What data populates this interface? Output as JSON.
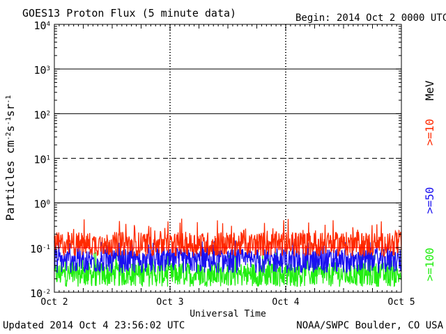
{
  "header": {
    "title": "GOES13 Proton Flux (5 minute data)",
    "begin": "Begin: 2014 Oct 2 0000 UTC"
  },
  "footer": {
    "updated": "Updated 2014 Oct  4 23:56:02 UTC",
    "source": "NOAA/SWPC Boulder, CO USA"
  },
  "chart_data": {
    "type": "line",
    "title": "GOES13 Proton Flux (5 minute data)",
    "xlabel": "Universal Time",
    "ylabel": "Particles cm-2s-1sr-1",
    "yscale": "log",
    "ylim": [
      0.01,
      10000
    ],
    "y_ticks": [
      {
        "base": "10",
        "exp": "-2",
        "value": 0.01
      },
      {
        "base": "10",
        "exp": "-1",
        "value": 0.1
      },
      {
        "base": "10",
        "exp": "0",
        "value": 1
      },
      {
        "base": "10",
        "exp": "1",
        "value": 10
      },
      {
        "base": "10",
        "exp": "2",
        "value": 100
      },
      {
        "base": "10",
        "exp": "3",
        "value": 1000
      },
      {
        "base": "10",
        "exp": "4",
        "value": 10000
      }
    ],
    "x_ticks": [
      "Oct 2",
      "Oct 3",
      "Oct 4",
      "Oct 5"
    ],
    "xlim_days": [
      0,
      3
    ],
    "unit_label": "MeV",
    "grid": {
      "solid": [
        1,
        100,
        1000
      ],
      "dashed": [
        10
      ],
      "red_line": 0.1
    },
    "series": [
      {
        "name": ">=10",
        "color": "#ff2a00",
        "typical": 0.12,
        "peak": 0.45
      },
      {
        "name": ">=50",
        "color": "#1a10f0",
        "typical": 0.05,
        "peak": 0.15
      },
      {
        "name": ">=100",
        "color": "#22ee11",
        "typical": 0.025,
        "peak": 0.08
      }
    ]
  }
}
